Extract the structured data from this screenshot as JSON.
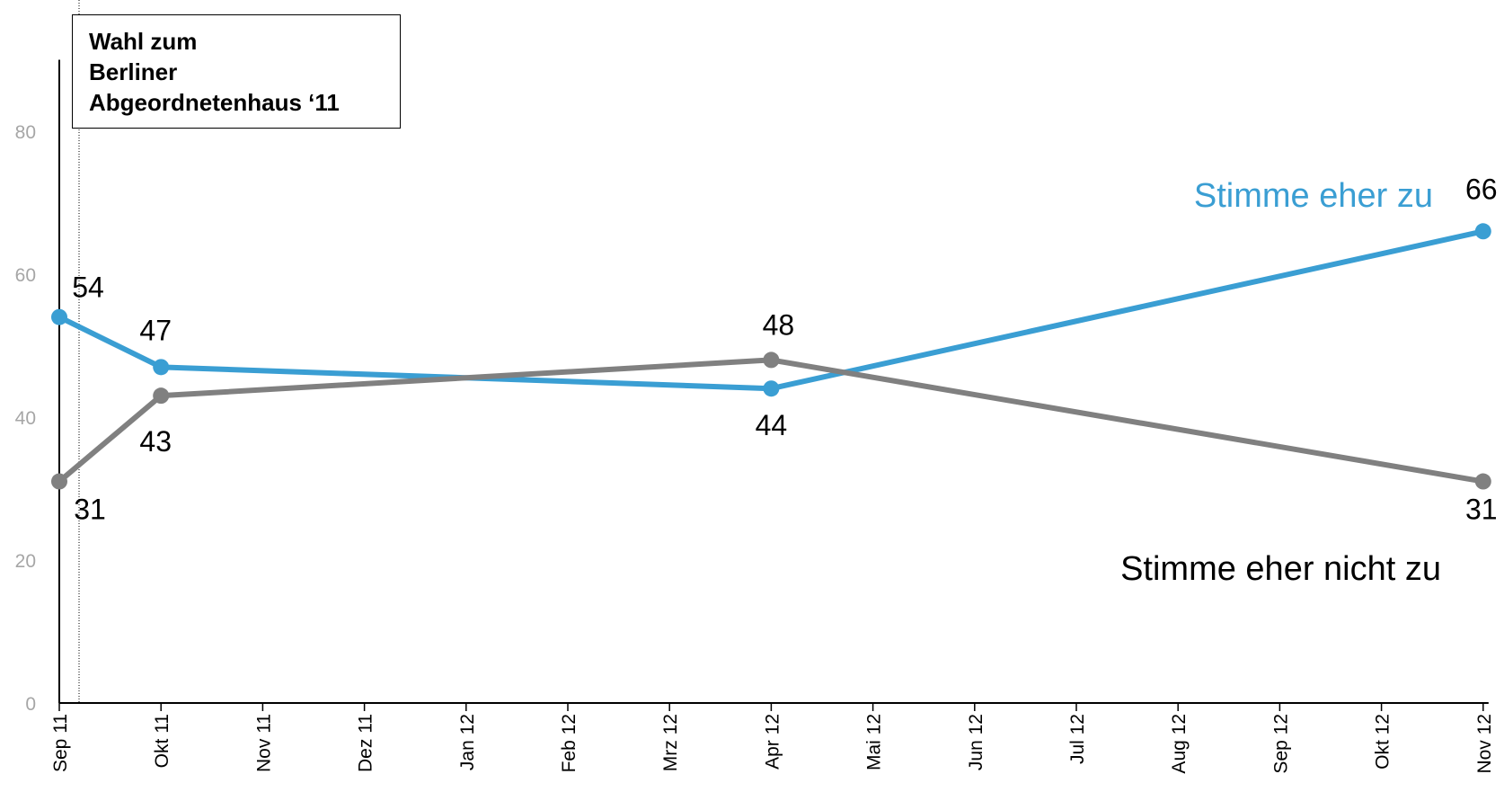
{
  "chart_data": {
    "type": "line",
    "categories": [
      "Sep 11",
      "Okt 11",
      "Nov 11",
      "Dez 11",
      "Jan 12",
      "Feb 12",
      "Mrz 12",
      "Apr 12",
      "Mai 12",
      "Jun 12",
      "Jul 12",
      "Aug 12",
      "Sep 12",
      "Okt 12",
      "Nov 12"
    ],
    "ylim": [
      0,
      90
    ],
    "yticks": [
      0,
      20,
      40,
      60,
      80
    ],
    "grid": false,
    "series": [
      {
        "name": "Stimme eher zu",
        "color": "#3a9ed3",
        "points": [
          {
            "x": "Sep 11",
            "y": 54
          },
          {
            "x": "Okt 11",
            "y": 47
          },
          {
            "x": "Apr 12",
            "y": 44
          },
          {
            "x": "Nov 12",
            "y": 66
          }
        ]
      },
      {
        "name": "Stimme eher nicht zu",
        "color": "#808080",
        "points": [
          {
            "x": "Sep 11",
            "y": 31
          },
          {
            "x": "Okt 11",
            "y": 43
          },
          {
            "x": "Apr 12",
            "y": 48
          },
          {
            "x": "Nov 12",
            "y": 31
          }
        ]
      }
    ],
    "annotation": {
      "lines": [
        "Wahl zum",
        "Berliner",
        "Abgeordnetenhaus ‘11"
      ],
      "marker_at": "Sep 11"
    }
  }
}
